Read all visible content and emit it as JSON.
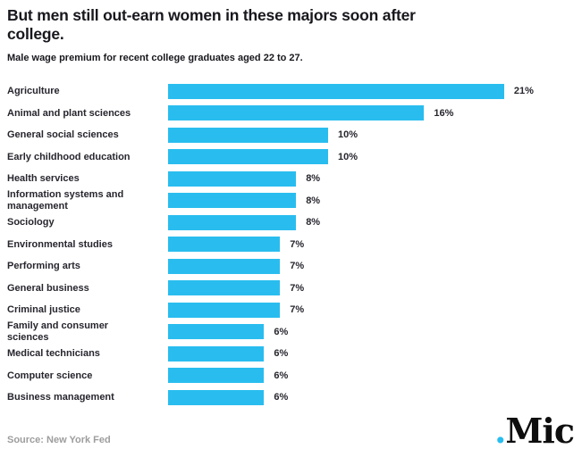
{
  "header": {
    "title": "But men still out-earn women in these majors soon after\ncollege.",
    "subtitle": "Male wage premium for recent college graduates aged 22 to 27."
  },
  "footer": {
    "source": "Source: New York Fed",
    "logo_dot": ".",
    "logo_text": "Mic"
  },
  "colors": {
    "background": "#ffffff",
    "bar": "#29bdef",
    "title": "#17171d",
    "label": "#26262e",
    "source": "#9d9d9d"
  },
  "chart_data": {
    "type": "bar",
    "orientation": "horizontal",
    "title": "But men still out-earn women in these majors soon after college.",
    "subtitle": "Male wage premium for recent college graduates aged 22 to 27.",
    "categories": [
      "Agriculture",
      "Animal and plant sciences",
      "General social sciences",
      "Early childhood education",
      "Health services",
      "Information systems and\nmanagement",
      "Sociology",
      "Environmental studies",
      "Performing arts",
      "General business",
      "Criminal justice",
      "Family and consumer\nsciences",
      "Medical technicians",
      "Computer science",
      "Business management"
    ],
    "values": [
      21,
      16,
      10,
      10,
      8,
      8,
      8,
      7,
      7,
      7,
      7,
      6,
      6,
      6,
      6
    ],
    "value_labels": [
      "21%",
      "16%",
      "10%",
      "10%",
      "8%",
      "8%",
      "8%",
      "7%",
      "7%",
      "7%",
      "7%",
      "6%",
      "6%",
      "6%",
      "6%"
    ],
    "unit": "%",
    "xlim": [
      0,
      21
    ],
    "grid": false,
    "axis_shown": false,
    "value_label_position": "right-of-bar",
    "source": "New York Fed"
  }
}
